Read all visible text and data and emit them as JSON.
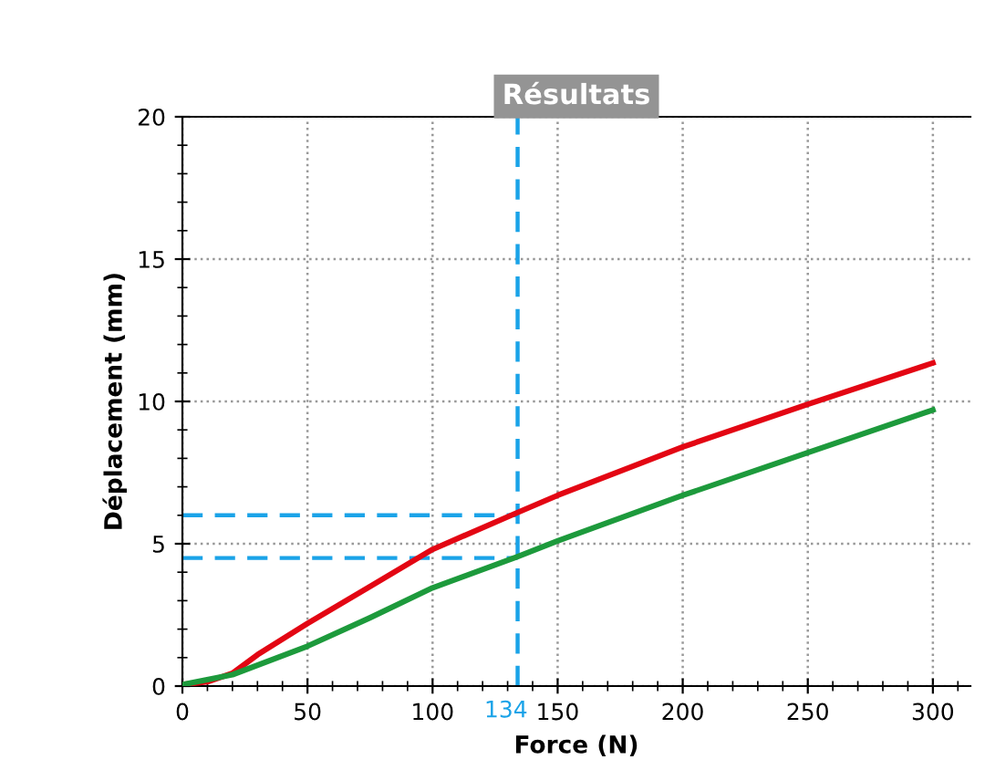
{
  "chart_data": {
    "type": "line",
    "title": "Résultats",
    "xlabel": "Force (N)",
    "ylabel": "Déplacement (mm)",
    "xlim": [
      0,
      315
    ],
    "ylim": [
      0,
      20
    ],
    "xticks": [
      0,
      50,
      100,
      150,
      200,
      250,
      300
    ],
    "yticks": [
      0,
      5,
      10,
      15,
      20
    ],
    "grid": true,
    "line_style": "solid",
    "marker": "none",
    "series": [
      {
        "color": "#e30613",
        "x": [
          0,
          10,
          20,
          30,
          50,
          75,
          100,
          134,
          150,
          200,
          250,
          300
        ],
        "values": [
          0.05,
          0.15,
          0.45,
          1.1,
          2.2,
          3.5,
          4.8,
          6.1,
          6.7,
          8.4,
          9.9,
          11.35
        ]
      },
      {
        "color": "#1d9a3c",
        "x": [
          0,
          20,
          50,
          75,
          100,
          134,
          150,
          200,
          250,
          300
        ],
        "values": [
          0.05,
          0.4,
          1.4,
          2.4,
          3.45,
          4.55,
          5.1,
          6.7,
          8.2,
          9.7
        ]
      }
    ],
    "ref_lines": [
      {
        "axis": "x",
        "value": 134,
        "label": "134",
        "color": "#1aa3e8",
        "line_style": "dashed"
      },
      {
        "axis": "y",
        "value": 6,
        "color": "#1aa3e8",
        "line_style": "dashed"
      },
      {
        "axis": "y",
        "value": 4.5,
        "color": "#1aa3e8",
        "line_style": "dashed"
      }
    ]
  }
}
